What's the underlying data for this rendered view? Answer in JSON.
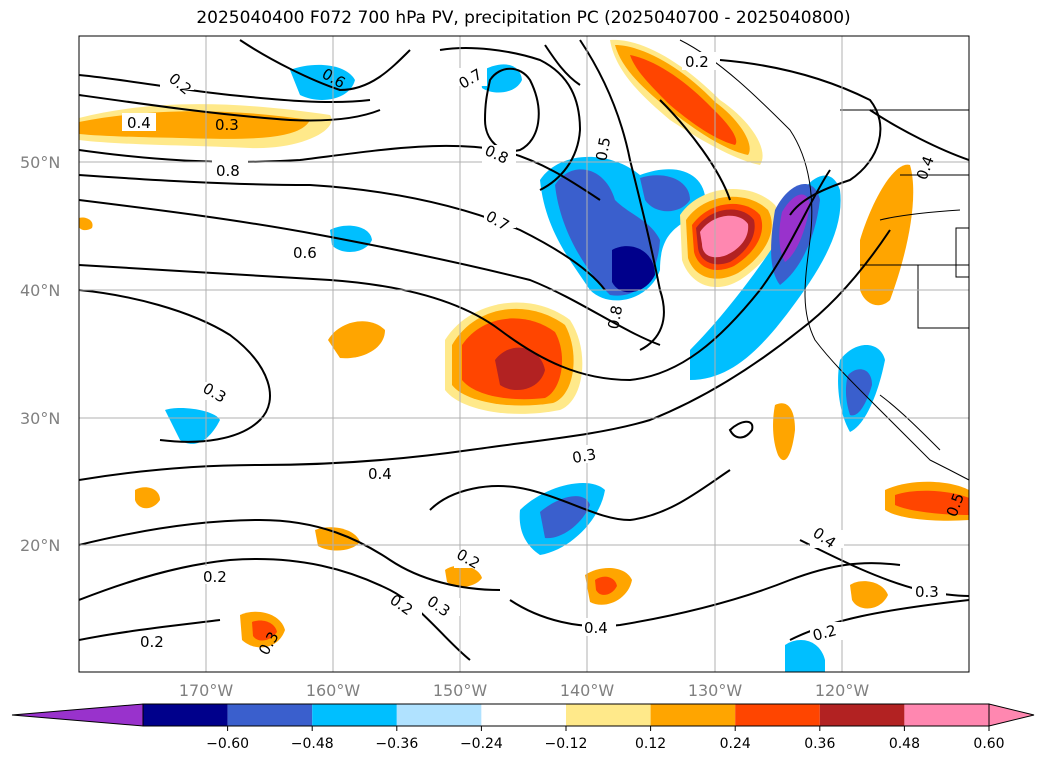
{
  "title": "2025040400 F072 700 hPa PV, precipitation PC (2025040700 - 2025040800)",
  "map": {
    "lat_labels": [
      "50°N",
      "40°N",
      "30°N",
      "20°N"
    ],
    "lon_labels": [
      "170°W",
      "160°W",
      "150°W",
      "140°W",
      "130°W",
      "120°W"
    ],
    "contour_labels": [
      "0.2",
      "0.4",
      "0.3",
      "0.8",
      "0.6",
      "0.7",
      "0.8",
      "0.5",
      "0.7",
      "0.6",
      "0.3",
      "0.4",
      "0.3",
      "0.2",
      "0.2",
      "0.3",
      "0.2",
      "0.2",
      "0.3",
      "0.4",
      "0.4",
      "0.3",
      "0.2",
      "0.2",
      "0.8",
      "0.5",
      "0.4"
    ]
  },
  "colorbar": {
    "ticks": [
      "−0.60",
      "−0.48",
      "−0.36",
      "−0.24",
      "−0.12",
      "0.12",
      "0.24",
      "0.36",
      "0.48",
      "0.60"
    ],
    "colors": [
      "#9932CC",
      "#00008B",
      "#3A5FCD",
      "#00BFFF",
      "#B0E2FF",
      "#FFFFFF",
      "#FFE98A",
      "#FFA500",
      "#FF4500",
      "#B22222",
      "#FF87B0",
      "#FF87B0"
    ]
  }
}
